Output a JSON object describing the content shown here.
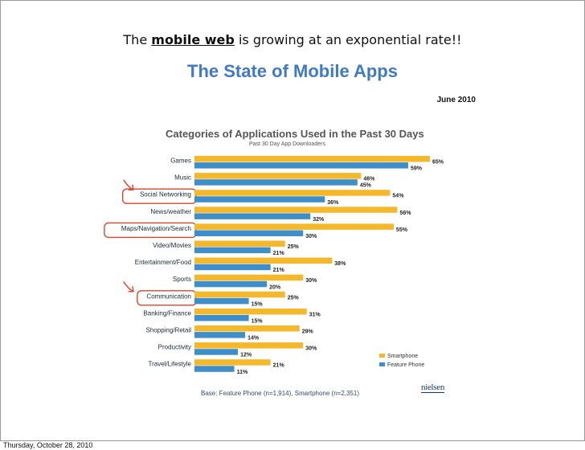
{
  "slide": {
    "headline_before": "The",
    "headline_emphasis": "mobile web",
    "headline_after": "is growing at an exponential rate!!",
    "main_title": "The State of Mobile Apps",
    "date": "June 2010",
    "footer_date": "Thursday, October 28, 2010",
    "base_note": "Base: Feature Phone (n=1,914), Smartphone (n=2,351)",
    "logo_text": "nielsen"
  },
  "colors": {
    "smartphone": "#f5b82a",
    "feature_phone": "#3e8fc9",
    "title_blue": "#3f7ac6",
    "circle_red": "#d9452b"
  },
  "chart_data": {
    "type": "bar",
    "orientation": "horizontal",
    "title": "Categories of Applications Used in the Past 30 Days",
    "subtitle": "Past 30 Day App Downloaders",
    "categories": [
      "Games",
      "Music",
      "Social Networking",
      "News/weather",
      "Maps/Navigation/Search",
      "Video/Movies",
      "Entertainment/Food",
      "Sports",
      "Communication",
      "Banking/Finance",
      "Shopping/Retail",
      "Productivity",
      "Travel/Lifestyle"
    ],
    "series": [
      {
        "name": "Smartphone",
        "values": [
          65,
          46,
          54,
          56,
          55,
          25,
          38,
          30,
          25,
          31,
          29,
          30,
          21
        ]
      },
      {
        "name": "Feature Phone",
        "values": [
          59,
          45,
          36,
          32,
          30,
          21,
          21,
          20,
          15,
          15,
          14,
          12,
          11
        ]
      }
    ],
    "value_suffix": "%",
    "xlim": [
      0,
      65
    ],
    "legend": [
      "Smartphone",
      "Feature Phone"
    ],
    "legend_position": "bottom-right",
    "annotated_categories": [
      "Social Networking",
      "Maps/Navigation/Search",
      "Communication"
    ]
  }
}
